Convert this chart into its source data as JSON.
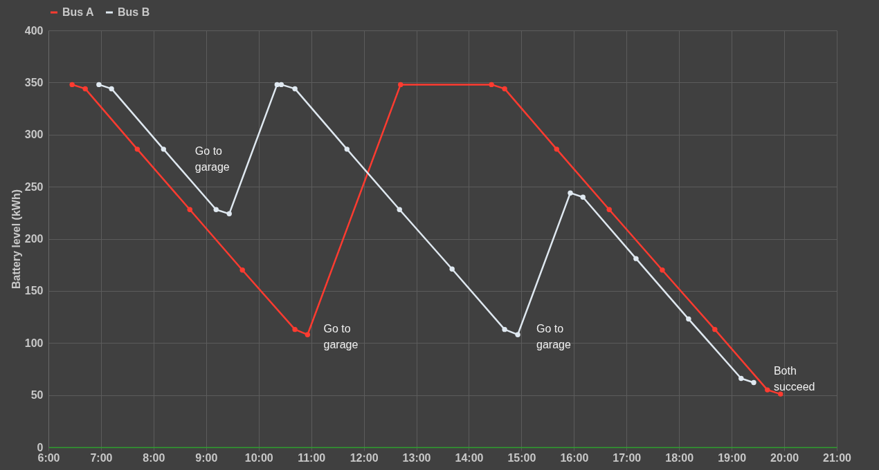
{
  "chart_data": {
    "type": "line",
    "ylabel": "Battery level (kWh)",
    "xlim": [
      6,
      21
    ],
    "xticks": [
      {
        "value": 6,
        "label": "6:00"
      },
      {
        "value": 7,
        "label": "7:00"
      },
      {
        "value": 8,
        "label": "8:00"
      },
      {
        "value": 9,
        "label": "9:00"
      },
      {
        "value": 10,
        "label": "10:00"
      },
      {
        "value": 11,
        "label": "11:00"
      },
      {
        "value": 12,
        "label": "12:00"
      },
      {
        "value": 13,
        "label": "13:00"
      },
      {
        "value": 14,
        "label": "14:00"
      },
      {
        "value": 15,
        "label": "15:00"
      },
      {
        "value": 16,
        "label": "16:00"
      },
      {
        "value": 17,
        "label": "17:00"
      },
      {
        "value": 18,
        "label": "18:00"
      },
      {
        "value": 19,
        "label": "19:00"
      },
      {
        "value": 20,
        "label": "20:00"
      },
      {
        "value": 21,
        "label": "21:00"
      }
    ],
    "ylim": [
      0,
      400
    ],
    "yticks": [
      0,
      50,
      100,
      150,
      200,
      250,
      300,
      350,
      400
    ],
    "grid": true,
    "legend": "top",
    "marker": "circle",
    "line_style": "solid",
    "series": [
      {
        "name": "Bus A",
        "color": "#ff3b30",
        "x": [
          6.45,
          6.7,
          7.69,
          8.69,
          9.69,
          10.69,
          10.93,
          12.7,
          14.43,
          14.68,
          15.67,
          16.67,
          17.68,
          18.68,
          19.68,
          19.93
        ],
        "values": [
          348,
          344,
          286,
          228,
          170,
          113,
          108,
          348,
          348,
          344,
          286,
          228,
          170,
          113,
          55,
          51
        ]
      },
      {
        "name": "Bus B",
        "color": "#dfe8f0",
        "x": [
          6.96,
          7.2,
          8.19,
          9.19,
          9.44,
          10.35,
          10.43,
          10.69,
          11.68,
          12.68,
          13.68,
          14.68,
          14.93,
          15.93,
          16.17,
          17.18,
          18.18,
          19.18,
          19.42
        ],
        "values": [
          348,
          344,
          286,
          228,
          224,
          348,
          348,
          344,
          286,
          228,
          171,
          113,
          108,
          244,
          240,
          181,
          123,
          66,
          62
        ]
      }
    ],
    "annotations": [
      "Go to\ngarage",
      "Go to\ngarage",
      "Go to\ngarage",
      "Both\nsucceed"
    ]
  }
}
